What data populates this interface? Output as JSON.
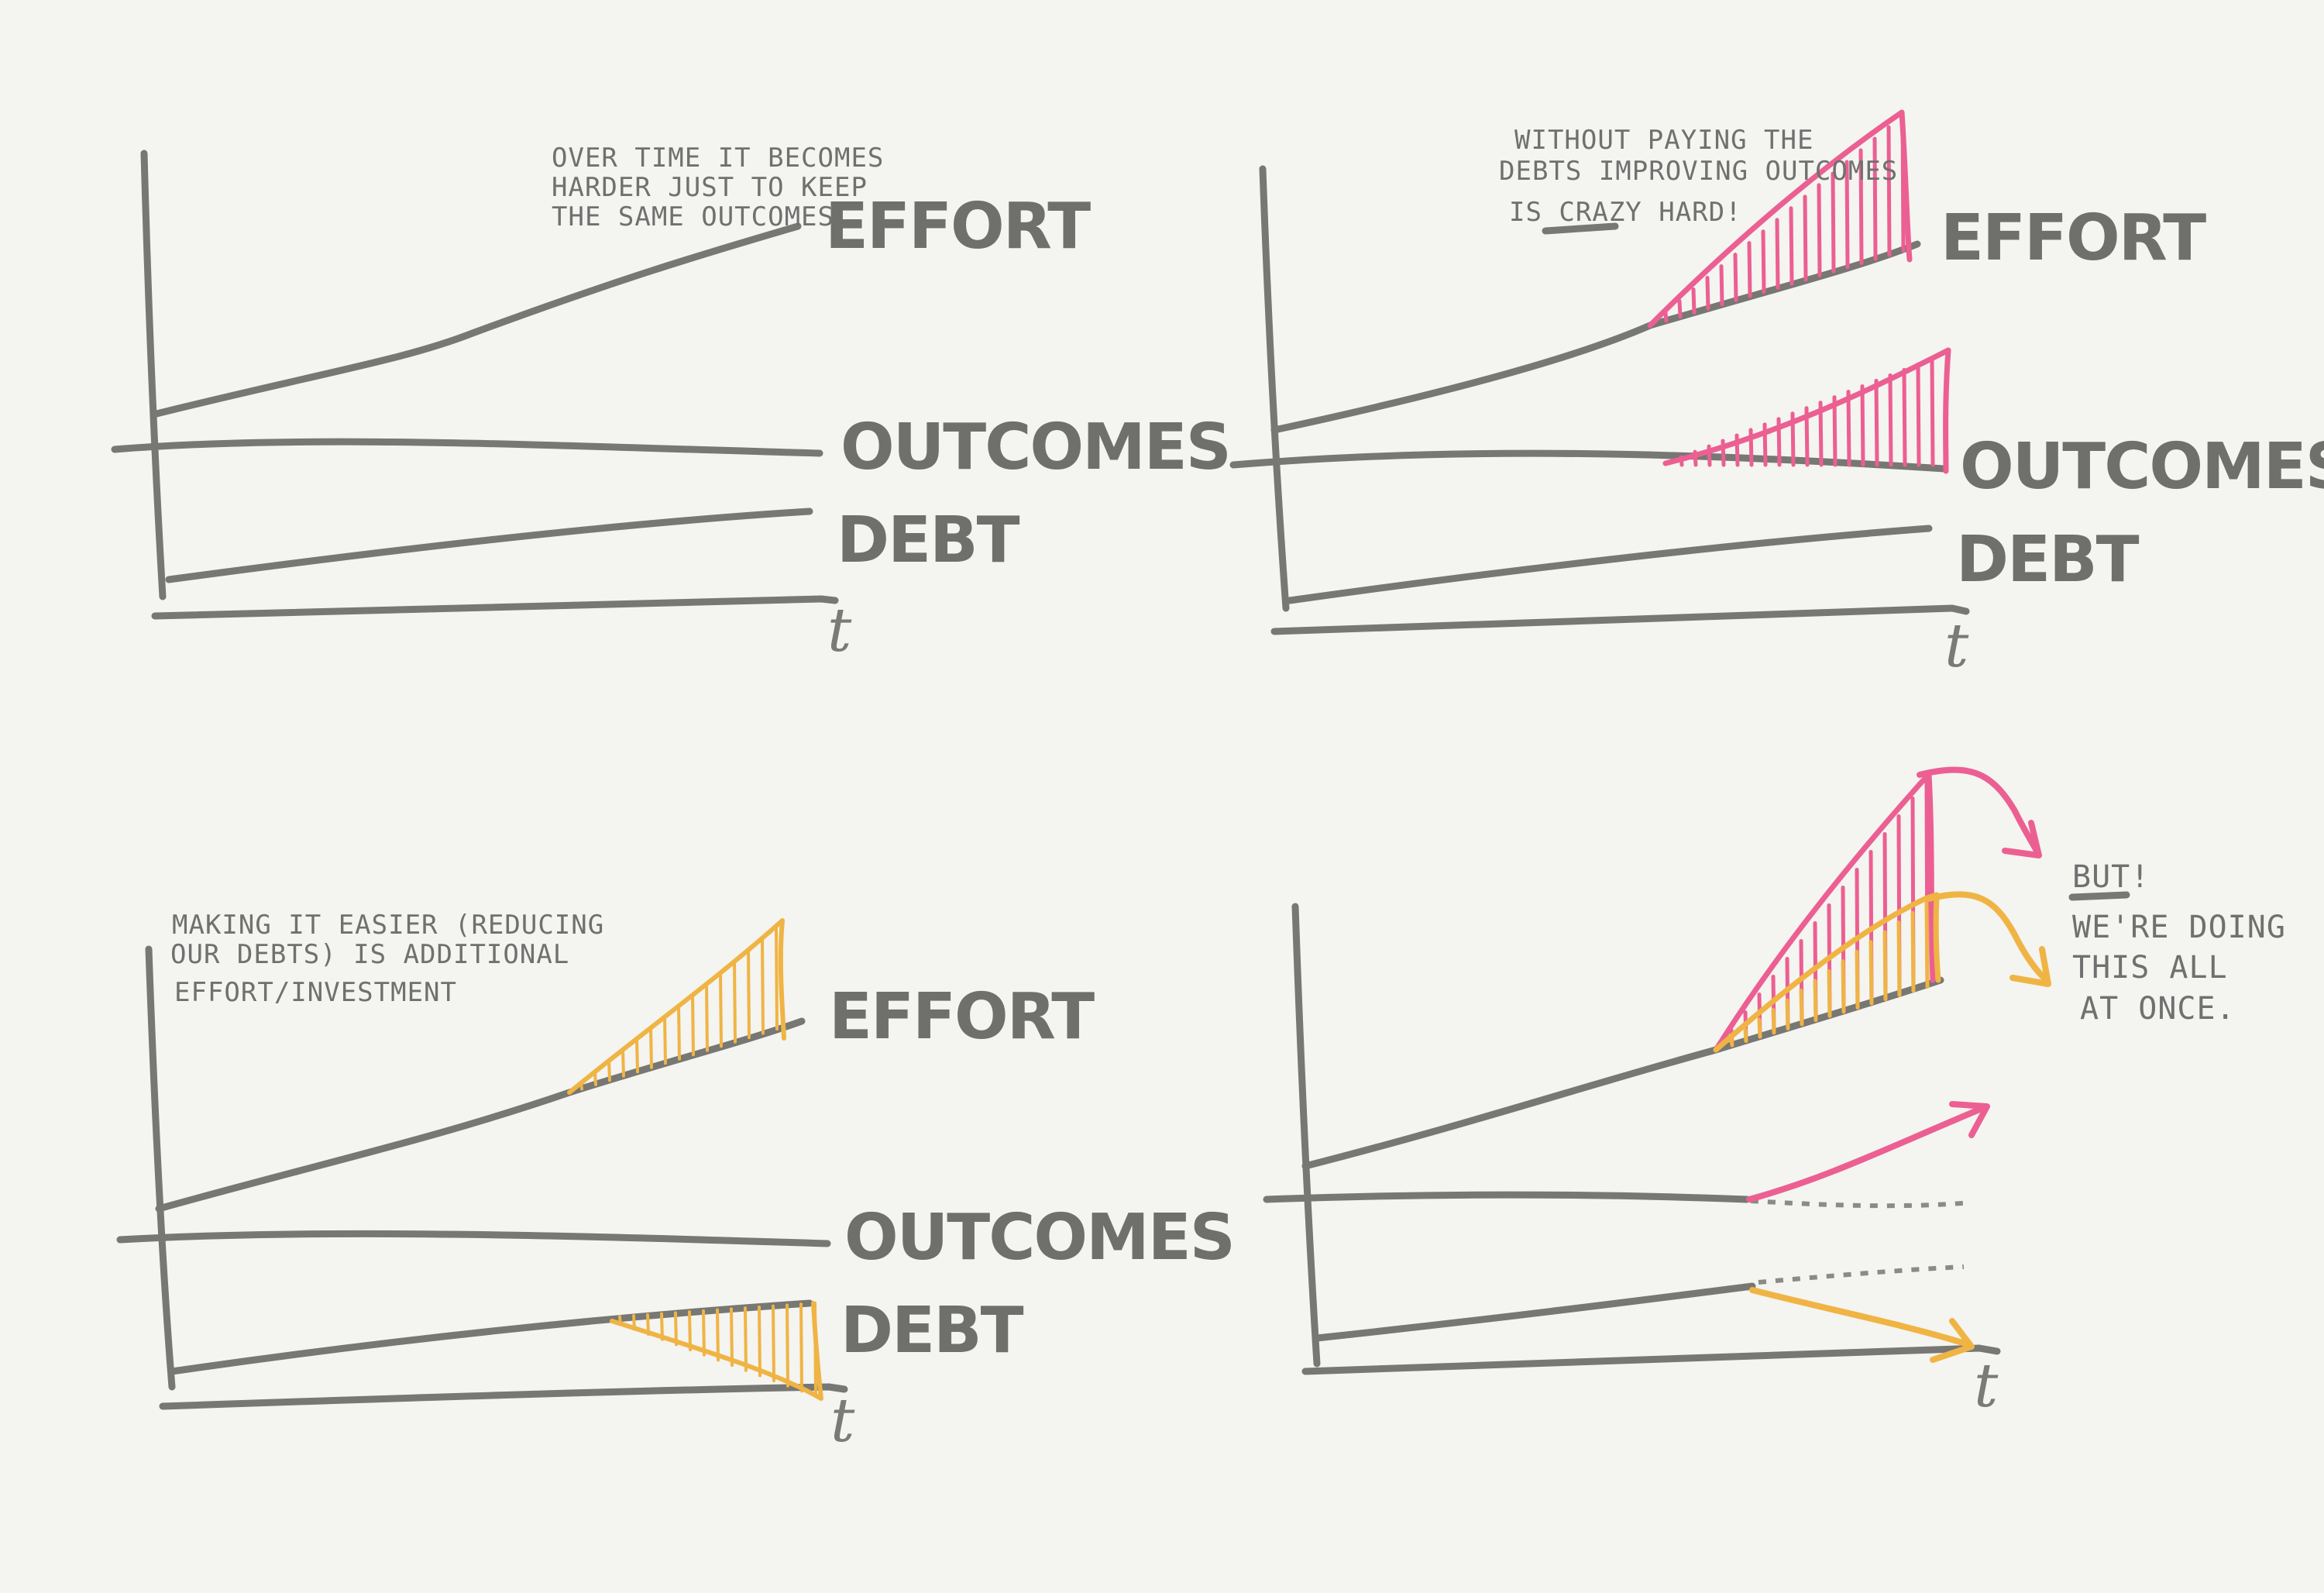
{
  "colors": {
    "background": "#f4f4f0",
    "ink": "#777774",
    "pink": "#ec5f92",
    "amber": "#efb444"
  },
  "labels": {
    "effort": "EFFORT",
    "outcomes": "OUTCOMES",
    "debt": "DEBT",
    "t": "t"
  },
  "panels": [
    {
      "id": "baseline",
      "note_lines": [
        "OVER TIME IT BECOMES",
        "HARDER JUST TO KEEP",
        "THE SAME OUTCOMES"
      ]
    },
    {
      "id": "improve-without-paying-debt",
      "note_lines": [
        "WITHOUT PAYING THE",
        "DEBTS IMPROVING OUTCOMES",
        "IS CRAZY HARD!"
      ]
    },
    {
      "id": "reduce-debt",
      "note_lines": [
        "MAKING IT EASIER (REDUCING",
        "OUR DEBTS) IS ADDITIONAL",
        "EFFORT/INVESTMENT"
      ]
    },
    {
      "id": "all-at-once",
      "note_title": "BUT!",
      "note_lines": [
        "WE'RE DOING",
        "THIS ALL",
        "AT ONCE."
      ]
    }
  ]
}
